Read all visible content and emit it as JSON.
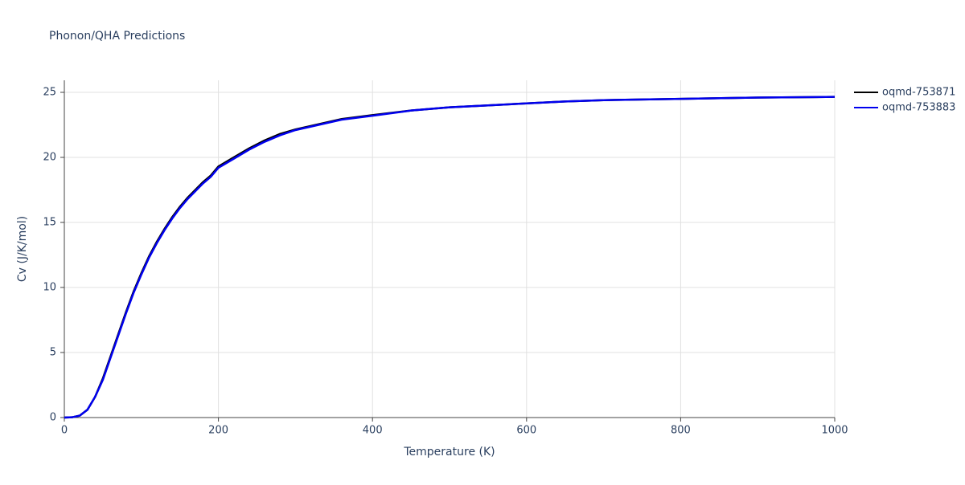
{
  "chart_data": {
    "type": "line",
    "title": "Phonon/QHA Predictions",
    "x_label": "Temperature (K)",
    "y_label": "Cv (J/K/mol)",
    "x": [
      0,
      10,
      20,
      30,
      40,
      50,
      60,
      70,
      80,
      90,
      100,
      110,
      120,
      130,
      140,
      150,
      160,
      170,
      180,
      190,
      200,
      220,
      240,
      260,
      280,
      300,
      330,
      360,
      400,
      450,
      500,
      550,
      600,
      650,
      700,
      800,
      900,
      1000
    ],
    "series": [
      {
        "name": "oqmd-753871",
        "color": "#000000",
        "values": [
          0,
          0.02,
          0.15,
          0.6,
          1.6,
          3.0,
          4.7,
          6.4,
          8.1,
          9.7,
          11.1,
          12.4,
          13.5,
          14.5,
          15.4,
          16.2,
          16.9,
          17.5,
          18.1,
          18.6,
          19.3,
          20.0,
          20.7,
          21.3,
          21.8,
          22.15,
          22.55,
          22.95,
          23.25,
          23.6,
          23.85,
          24.0,
          24.15,
          24.3,
          24.4,
          24.5,
          24.6,
          24.65
        ]
      },
      {
        "name": "oqmd-753883",
        "color": "#0000ee",
        "values": [
          0,
          0.02,
          0.15,
          0.6,
          1.6,
          2.9,
          4.6,
          6.3,
          8.0,
          9.6,
          11.0,
          12.3,
          13.4,
          14.4,
          15.3,
          16.1,
          16.8,
          17.4,
          18.0,
          18.5,
          19.2,
          19.9,
          20.6,
          21.2,
          21.7,
          22.1,
          22.5,
          22.9,
          23.2,
          23.6,
          23.85,
          24.0,
          24.15,
          24.3,
          24.4,
          24.5,
          24.6,
          24.65
        ]
      }
    ],
    "xlim": [
      0,
      1000
    ],
    "xticks": [
      0,
      200,
      400,
      600,
      800,
      1000
    ],
    "ylim": [
      0,
      25
    ],
    "yticks": [
      0,
      5,
      10,
      15,
      20,
      25
    ],
    "grid": true,
    "legend": "top-right"
  }
}
